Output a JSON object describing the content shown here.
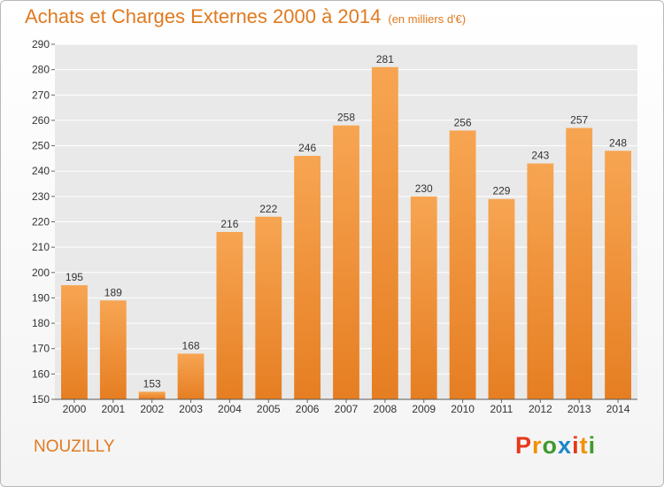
{
  "title": "Achats et Charges Externes 2000 à 2014",
  "unit_note": "(en milliers d'€)",
  "location": "NOUZILLY",
  "brand": {
    "logo_text": "Proxiti",
    "logo_colors": [
      "#e8371b",
      "#f29100",
      "#3f9a2e",
      "#1d86c8",
      "#e8371b",
      "#f29100",
      "#3f9a2e"
    ]
  },
  "colors": {
    "accent": "#e07a20",
    "bar_top": "#f7a552",
    "bar_bottom": "#e67e22",
    "plot_bg": "#e9e9e9",
    "grid": "#ffffff"
  },
  "chart_data": {
    "type": "bar",
    "title": "Achats et Charges Externes 2000 à 2014",
    "xlabel": "",
    "ylabel": "",
    "ylim": [
      150,
      290
    ],
    "yticks": [
      150,
      160,
      170,
      180,
      190,
      200,
      210,
      220,
      230,
      240,
      250,
      260,
      270,
      280,
      290
    ],
    "grid": true,
    "categories": [
      "2000",
      "2001",
      "2002",
      "2003",
      "2004",
      "2005",
      "2006",
      "2007",
      "2008",
      "2009",
      "2010",
      "2011",
      "2012",
      "2013",
      "2014"
    ],
    "values": [
      195,
      189,
      153,
      168,
      216,
      222,
      246,
      258,
      281,
      230,
      256,
      229,
      243,
      257,
      248
    ]
  }
}
